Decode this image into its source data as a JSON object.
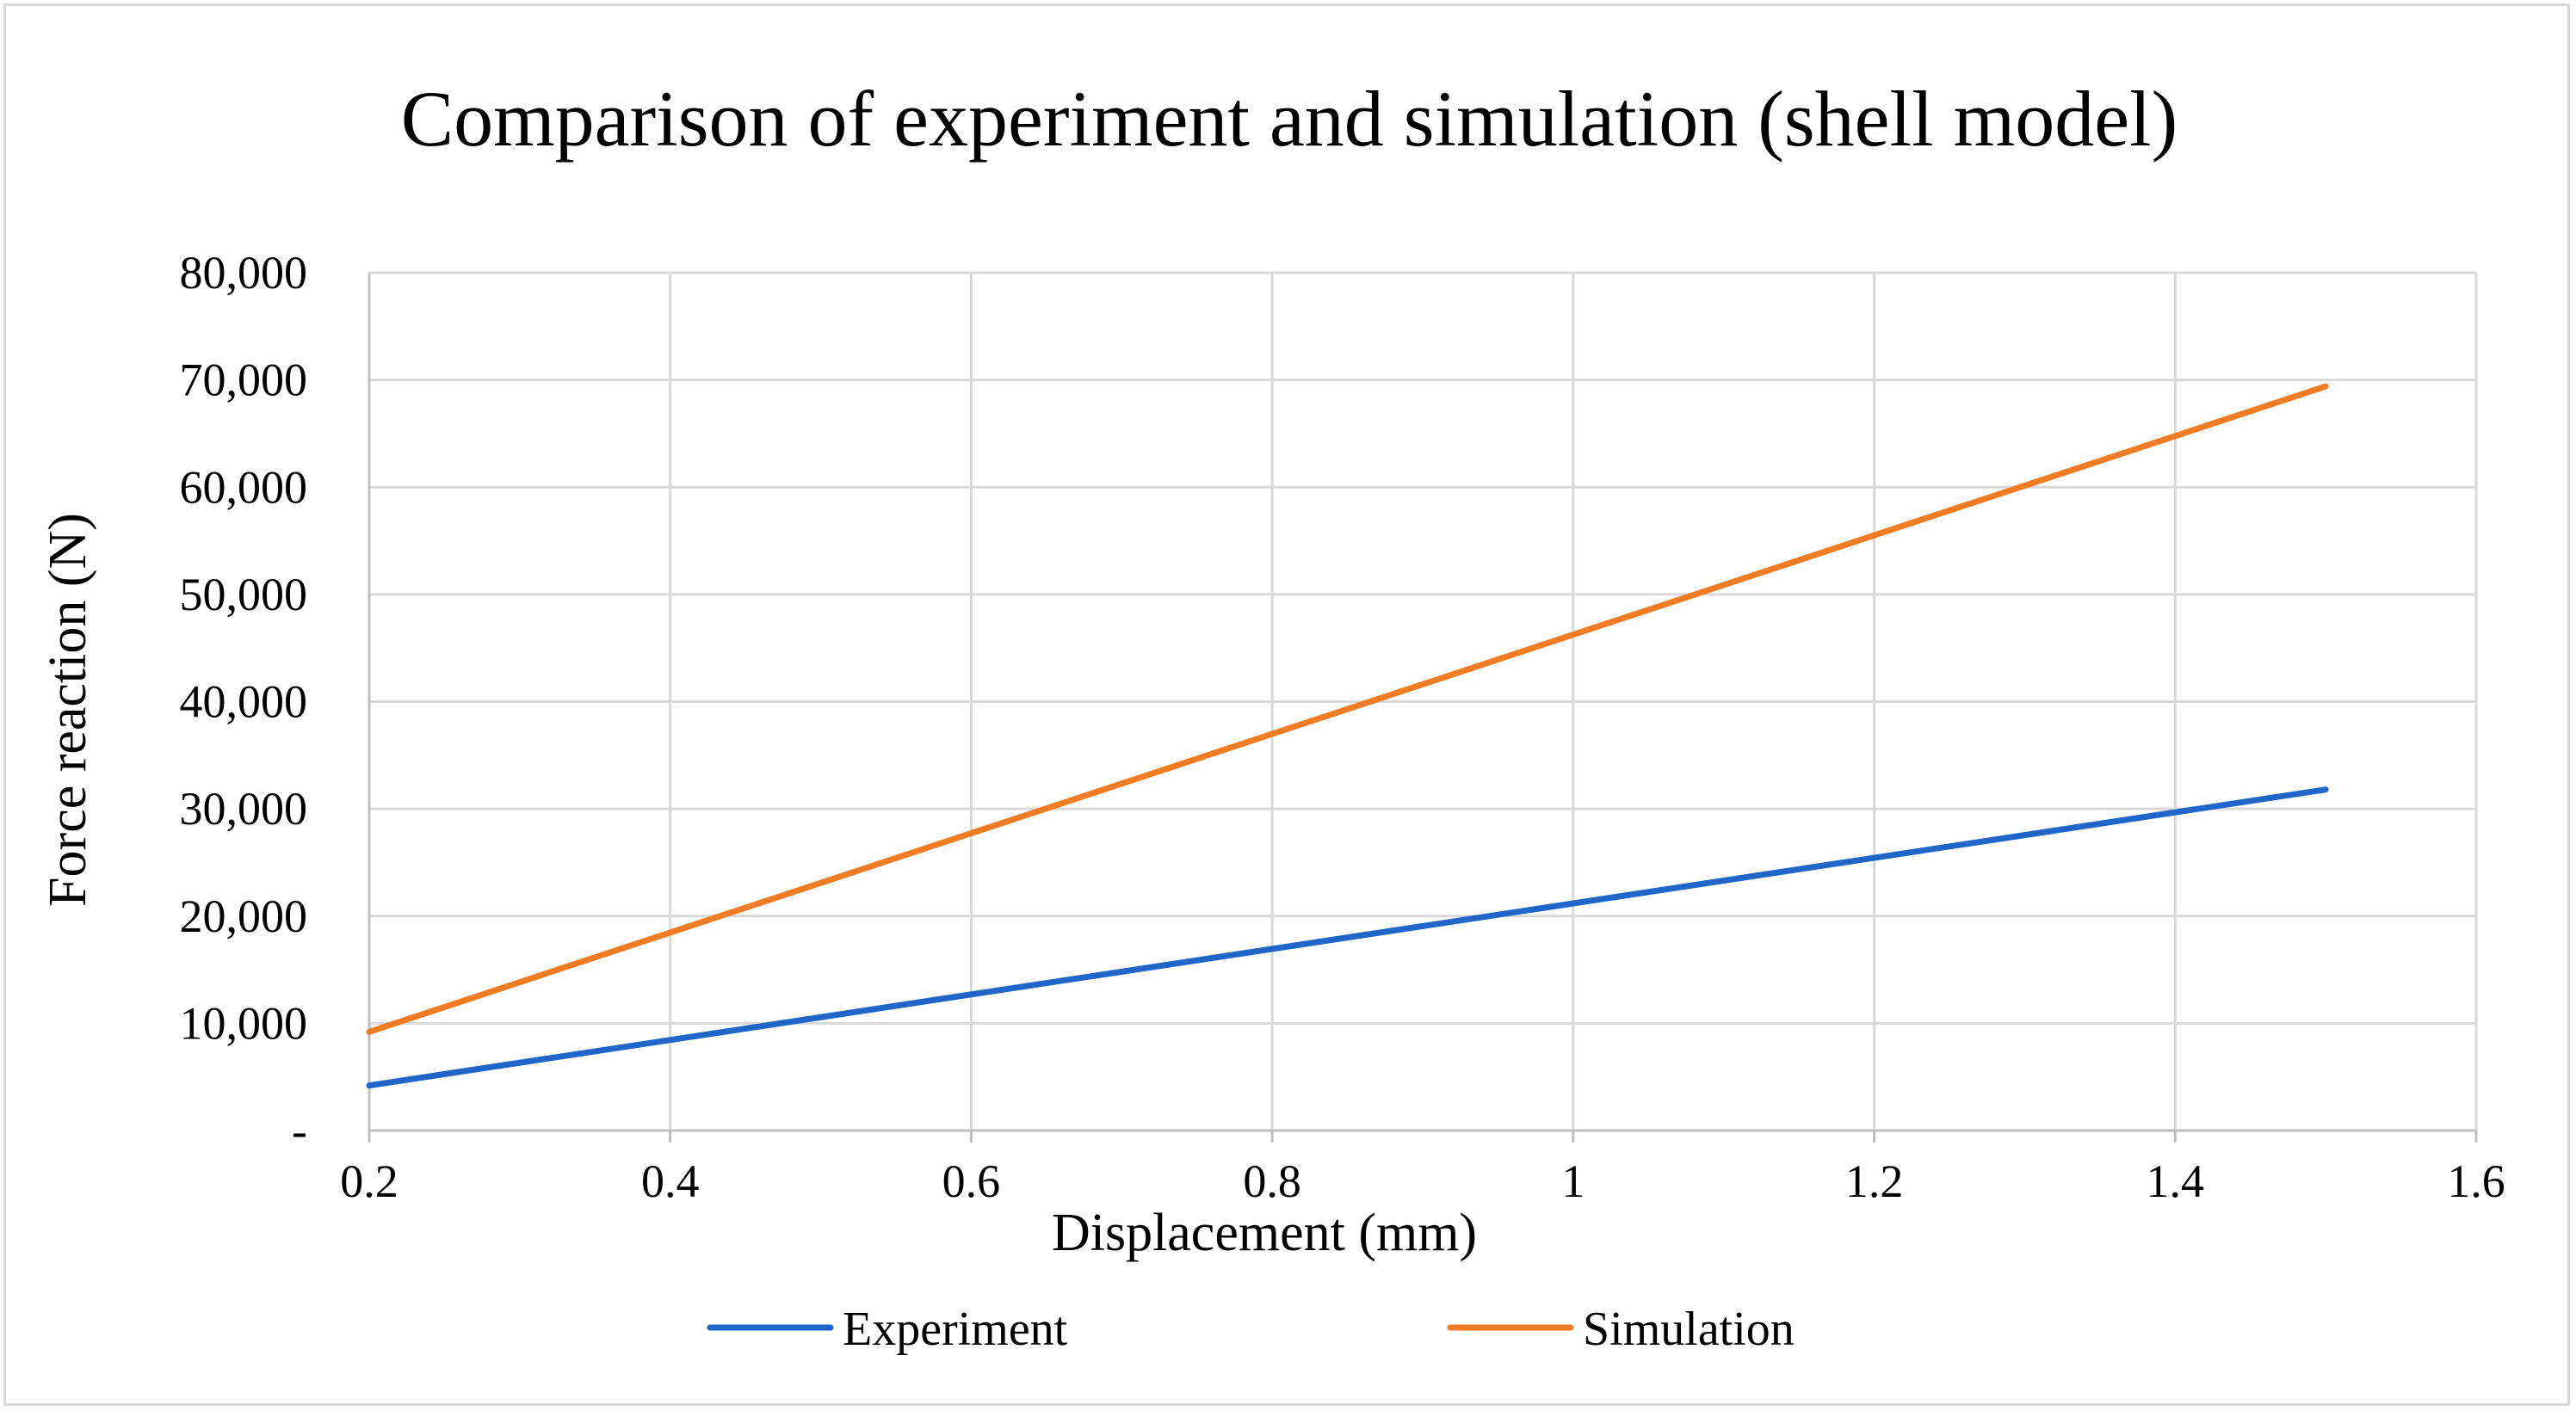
{
  "chart_data": {
    "type": "line",
    "title": "Comparison  of experiment  and  simulation  (shell model)",
    "xlabel": "Displacement  (mm)",
    "ylabel": "Force reaction (N)",
    "xlim": [
      0.2,
      1.6
    ],
    "ylim": [
      0,
      80000
    ],
    "x_ticks": [
      0.2,
      0.4,
      0.6,
      0.8,
      1,
      1.2,
      1.4,
      1.6
    ],
    "x_tick_labels": [
      "0.2",
      "0.4",
      "0.6",
      "0.8",
      "1",
      "1.2",
      "1.4",
      "1.6"
    ],
    "y_ticks": [
      0,
      10000,
      20000,
      30000,
      40000,
      50000,
      60000,
      70000,
      80000
    ],
    "y_tick_labels": [
      "-",
      "10,000",
      "20,000",
      "30,000",
      "40,000",
      "50,000",
      "60,000",
      "70,000",
      "80,000"
    ],
    "grid": true,
    "legend_position": "bottom",
    "series": [
      {
        "name": "Experiment",
        "color": "#1f66c8",
        "x": [
          0.2,
          1.5
        ],
        "y": [
          4200,
          31800
        ]
      },
      {
        "name": "Simulation",
        "color": "#f27c24",
        "x": [
          0.2,
          1.5
        ],
        "y": [
          9200,
          69400
        ]
      }
    ]
  }
}
